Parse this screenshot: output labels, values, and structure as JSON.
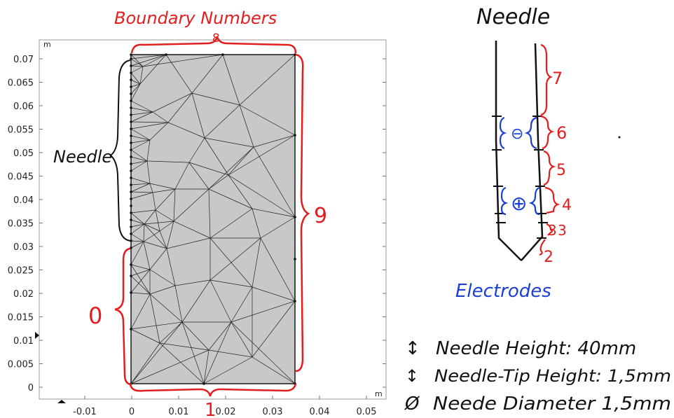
{
  "plot": {
    "unit_y": "m",
    "unit_x": "m",
    "y_ticks": [
      "0.07",
      "0.065",
      "0.06",
      "0.055",
      "0.05",
      "0.045",
      "0.04",
      "0.035",
      "0.03",
      "0.025",
      "0.02",
      "0.015",
      "0.01",
      "0.005",
      "0"
    ],
    "x_ticks": [
      "-0.01",
      "0",
      "0.01",
      "0.02",
      "0.03",
      "0.04",
      "0.05"
    ]
  },
  "annotations": {
    "boundary_title": "Boundary Numbers",
    "needle_left": "Needle",
    "labels": {
      "top": "8",
      "right": "9",
      "left": "0",
      "bottom": "1"
    }
  },
  "needle_sketch": {
    "title": "Needle",
    "numbers": [
      "7",
      "6",
      "5",
      "4",
      "3",
      "3",
      "2"
    ],
    "minus_symbol": "⊖",
    "plus_symbol": "⊕",
    "electrodes_label": "Electrodes"
  },
  "notes": [
    {
      "symbol": "↕",
      "text": "Needle Height: 40mm"
    },
    {
      "symbol": "↕",
      "text": "Needle-Tip Height: 1,5mm"
    },
    {
      "symbol": "Ø",
      "text": "Neede Diameter 1,5mm"
    }
  ],
  "colors": {
    "red": "#e31e1e",
    "blue": "#1a3fd6",
    "mesh_fill": "#c8c8c8"
  }
}
